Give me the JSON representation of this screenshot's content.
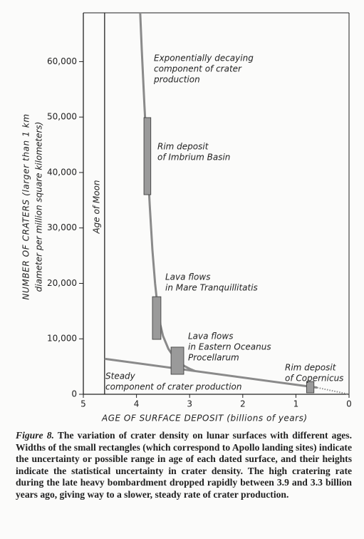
{
  "chart_data": {
    "type": "line",
    "ylabel": [
      "NUMBER OF CRATERS (larger than 1 km",
      "diameter per million square kilometers)"
    ],
    "xlabel": "AGE OF SURFACE DEPOSIT (billions of years)",
    "xlim": [
      5,
      0
    ],
    "ylim": [
      0,
      68800
    ],
    "xticks": [
      5,
      4,
      3,
      2,
      1,
      0
    ],
    "yticks": [
      0,
      {
        "value": 10000,
        "label": "10,000"
      },
      {
        "value": 20000,
        "label": "20,000"
      },
      {
        "value": 30000,
        "label": "30,000"
      },
      {
        "value": 40000,
        "label": "40,000"
      },
      {
        "value": 50000,
        "label": "50,000"
      },
      {
        "value": 60000,
        "label": "60,000"
      }
    ],
    "series": [
      {
        "color": "#8a8a8a",
        "style": "solid",
        "x": [
          3.93,
          3.9,
          3.85,
          3.8,
          3.75,
          3.7,
          3.65,
          3.6,
          3.55,
          3.5,
          3.4,
          3.3,
          3.2,
          3.1,
          3.0,
          2.9
        ],
        "y": [
          68800,
          62000,
          52000,
          43000,
          34000,
          26000,
          20000,
          15500,
          12500,
          10500,
          8200,
          6800,
          5800,
          5100,
          4600,
          4200
        ]
      },
      {
        "color": "#8a8a8a",
        "style": "solid",
        "x": [
          4.6,
          0.6
        ],
        "y": [
          6400,
          1200
        ]
      },
      {
        "color": "#8a8a8a",
        "style": "dotted",
        "x": [
          0.6,
          0
        ],
        "y": [
          1200,
          0
        ]
      }
    ],
    "boxes": [
      {
        "x": [
          3.86,
          3.73
        ],
        "y": [
          36000,
          49900
        ]
      },
      {
        "x": [
          3.7,
          3.54
        ],
        "y": [
          9900,
          17600
        ]
      },
      {
        "x": [
          3.35,
          3.11
        ],
        "y": [
          3600,
          8500
        ]
      },
      {
        "x": [
          0.8,
          0.66
        ],
        "y": [
          260,
          2300
        ]
      }
    ],
    "box_color": "#9a9a9a",
    "age_of_moon": {
      "x": 4.6,
      "label": "Age of Moon"
    },
    "annotations": [
      [
        "Exponentially decaying",
        "component of crater",
        "production"
      ],
      [
        "Rim deposit",
        "of Imbrium Basin"
      ],
      [
        "Lava flows",
        "in Mare Tranquillitatis"
      ],
      [
        "Lava flows",
        "in Eastern Oceanus",
        "Procellarum"
      ],
      [
        "Steady",
        "component of crater production"
      ],
      [
        "Rim deposit",
        "of Copernicus"
      ]
    ]
  },
  "caption": {
    "label": "Figure 8.",
    "text": "The variation of crater density on lunar surfaces with different ages. Widths of the small rectangles (which correspond to Apollo landing sites) indicate the uncertainty or possible range in age of each dated surface, and their heights indicate the statistical uncertainty in crater density. The high cratering rate during the late heavy bombardment dropped rapidly between 3.9 and 3.3 billion years ago, giving way to a slower, steady rate of crater production."
  }
}
